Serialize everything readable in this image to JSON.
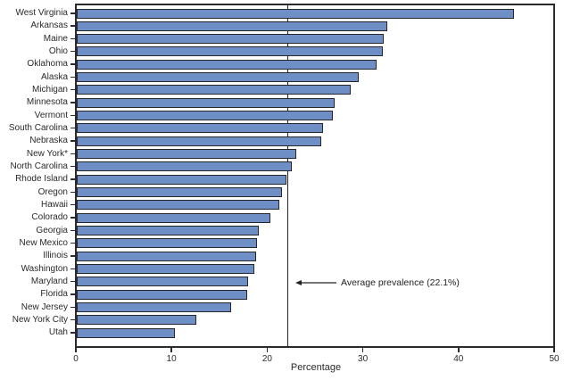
{
  "chart_data": {
    "type": "bar",
    "orientation": "horizontal",
    "title": "",
    "xlabel": "Percentage",
    "ylabel": "",
    "xlim": [
      0,
      50
    ],
    "xticks": [
      0,
      10,
      20,
      30,
      40,
      50
    ],
    "grid": false,
    "legend": "none",
    "categories": [
      "West Virginia",
      "Arkansas",
      "Maine",
      "Ohio",
      "Oklahoma",
      "Alaska",
      "Michigan",
      "Minnesota",
      "Vermont",
      "South Carolina",
      "Nebraska",
      "New York*",
      "North Carolina",
      "Rhode Island",
      "Oregon",
      "Hawaii",
      "Colorado",
      "Georgia",
      "New Mexico",
      "Illinois",
      "Washington",
      "Maryland",
      "Florida",
      "New Jersey",
      "New York City",
      "Utah"
    ],
    "values": [
      45.9,
      32.6,
      32.2,
      32.1,
      31.5,
      29.6,
      28.7,
      27.1,
      26.9,
      25.8,
      25.7,
      23.0,
      22.6,
      22.0,
      21.5,
      21.3,
      20.3,
      19.1,
      18.9,
      18.8,
      18.6,
      18.0,
      17.9,
      16.2,
      12.5,
      10.3
    ],
    "reference_line": {
      "value": 22.1,
      "label": "Average prevalence (22.1%)"
    },
    "colors": {
      "bar_fill": "#6E8FC6",
      "bar_border": "#26262B",
      "axis": "#2B2B2E",
      "text": "#2A2A2A",
      "background": "#FFFFFF"
    }
  }
}
